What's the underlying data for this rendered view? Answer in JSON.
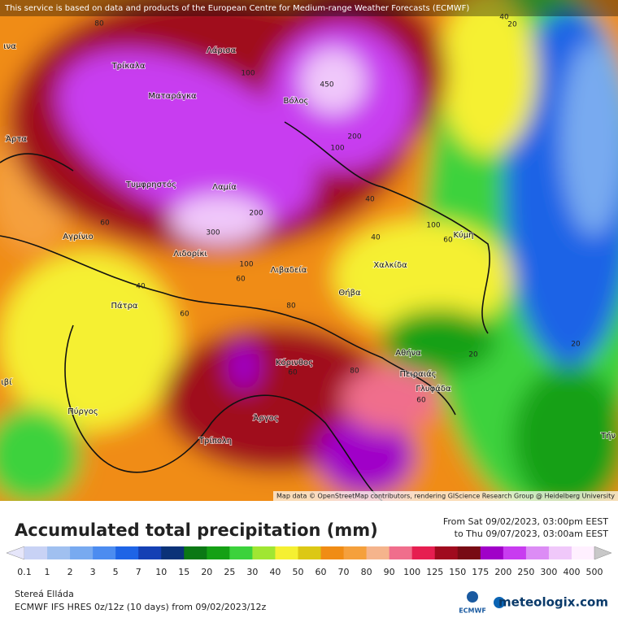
{
  "map": {
    "header": "This service is based on data and products of the European Centre for Medium-range Weather Forecasts (ECMWF)",
    "cities": [
      "Λάρισα",
      "Τρίκαλα",
      "Ματαράγκα",
      "Βόλος",
      "Άρτα",
      "Τυμφρηστός",
      "Λαμία",
      "Αγρίνιο",
      "Λιδορίκι",
      "Χαλκίδα",
      "Κύμη",
      "Λιβαδεία",
      "Θήβα",
      "Πάτρα",
      "Κόρινθος",
      "Αθήνα",
      "Πειραιάς",
      "Γλυφάδα",
      "Πύργος",
      "Άργος",
      "Τρίπολη",
      "ινα",
      "ιβί",
      "Τήν"
    ],
    "contours": [
      "80",
      "100",
      "450",
      "40",
      "200",
      "100",
      "300",
      "200",
      "100",
      "60",
      "40",
      "60",
      "80",
      "60",
      "80",
      "60",
      "40",
      "20",
      "20",
      "20",
      "60",
      "40",
      "100",
      "60"
    ],
    "attribution": "Map data © OpenStreetMap contributors, rendering GIScience Research Group @ Heidelberg University"
  },
  "legend": {
    "title": "Accumulated total precipitation (mm)",
    "from": "From Sat 09/02/2023, 03:00pm EEST",
    "to": "to Thu 09/07/2023, 03:00am EEST",
    "ticks": [
      0.1,
      1,
      2,
      3,
      5,
      7,
      10,
      15,
      20,
      25,
      30,
      40,
      50,
      60,
      70,
      80,
      90,
      100,
      125,
      150,
      175,
      200,
      250,
      300,
      400,
      500
    ],
    "colors": [
      "#e6e6fa",
      "#c8d2f5",
      "#a0c0f0",
      "#78aaf0",
      "#4c8cf0",
      "#1e64e6",
      "#1440b4",
      "#0a3278",
      "#0a7814",
      "#14a014",
      "#3cd23c",
      "#a0e632",
      "#f5f032",
      "#dcc814",
      "#f08c14",
      "#f5a03c",
      "#f5b48c",
      "#f06e8c",
      "#e61e50",
      "#a00a1e",
      "#780a14",
      "#a000c8",
      "#c83cf0",
      "#dc8cf5",
      "#f0c8fa",
      "#fff0ff",
      "#c8c8c8"
    ]
  },
  "footer": {
    "region": "Stereá Elláda",
    "model": "ECMWF IFS HRES 0z/12z (10 days) from 09/02/2023/12z",
    "ecmwf": "ECMWF",
    "brand": "meteologix.com"
  }
}
